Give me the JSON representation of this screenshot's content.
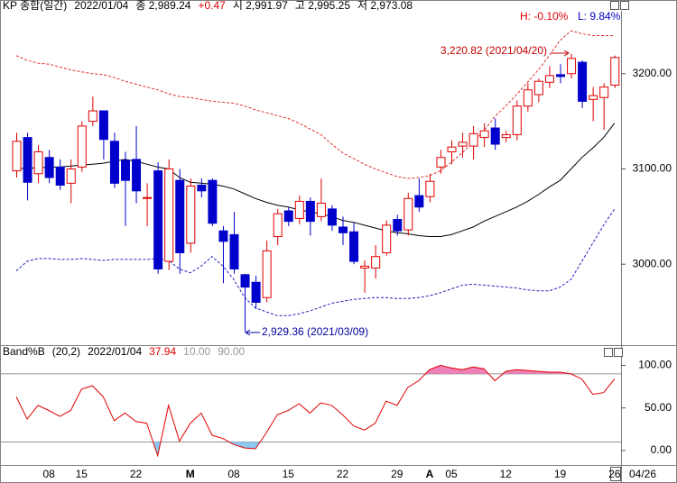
{
  "chart_data": [
    {
      "type": "candlestick",
      "header": [
        "KP 종합(일간)",
        "2022/01/04",
        "종 2,989.24",
        "+0.47",
        "시 2,991.97",
        "고 2,995.25",
        "저 2,973.08"
      ],
      "header_colors": [
        "#000000",
        "#000000",
        "#000000",
        "#e00000",
        "#000000",
        "#000000",
        "#000000"
      ],
      "range_labels": [
        "H: -0.10%",
        "L: 9.84%"
      ],
      "range_colors": [
        "#e00000",
        "#0000c0"
      ],
      "annotations": [
        {
          "text": "3,220.82 (2021/04/20)",
          "color": "#c00000"
        },
        {
          "text": "2,929.36 (2021/03/09)",
          "color": "#0000a0"
        }
      ],
      "categories": [
        null,
        null,
        null,
        "08",
        null,
        null,
        "15",
        null,
        null,
        null,
        null,
        "22",
        null,
        null,
        null,
        null,
        "M",
        null,
        null,
        null,
        "08",
        null,
        null,
        null,
        null,
        "15",
        null,
        null,
        null,
        null,
        "22",
        null,
        null,
        null,
        null,
        "29",
        null,
        null,
        "A",
        null,
        "05",
        null,
        null,
        null,
        null,
        "12",
        null,
        null,
        null,
        null,
        "19",
        null,
        null,
        null,
        null,
        "26"
      ],
      "date_label": "04/26",
      "open": [
        3098,
        3133,
        3095,
        3112,
        3102,
        3085,
        3102,
        3150,
        3161,
        3129,
        3109,
        3110,
        3069,
        3098,
        3003,
        3088,
        3022,
        3083,
        3088,
        3035,
        3031,
        2989,
        2981,
        2965,
        3029,
        3056,
        3048,
        3066,
        3050,
        3058,
        3039,
        3034,
        2996,
        2996,
        3012,
        3047,
        3036,
        3072,
        3071,
        3102,
        3118,
        3124,
        3124,
        3133,
        3143,
        3133,
        3136,
        3166,
        3178,
        3191,
        3199,
        3200,
        3212,
        3173,
        3175,
        3188
      ],
      "high": [
        3138,
        3138,
        3125,
        3120,
        3110,
        3110,
        3150,
        3176,
        3161,
        3138,
        3118,
        3145,
        3085,
        3107,
        3110,
        3100,
        3090,
        3090,
        3090,
        3040,
        3055,
        2990,
        2988,
        3025,
        3058,
        3060,
        3072,
        3070,
        3090,
        3062,
        3050,
        3044,
        3004,
        3020,
        3046,
        3052,
        3075,
        3090,
        3095,
        3120,
        3130,
        3138,
        3145,
        3148,
        3153,
        3140,
        3172,
        3190,
        3195,
        3208,
        3210,
        3220.82,
        3214,
        3186,
        3190,
        3219
      ],
      "low": [
        3091,
        3067,
        3085,
        3085,
        3078,
        3064,
        3097,
        3145,
        3110,
        3080,
        3040,
        3064,
        3040,
        2990,
        2994,
        2990,
        3012,
        3070,
        3040,
        2980,
        2990,
        2929.36,
        2953,
        2960,
        3020,
        3040,
        3042,
        3030,
        3045,
        3035,
        3020,
        3000,
        2970,
        2985,
        3009,
        3030,
        3030,
        3055,
        3065,
        3095,
        3105,
        3112,
        3110,
        3123,
        3120,
        3128,
        3130,
        3160,
        3170,
        3185,
        3190,
        3195,
        3164,
        3150,
        3141,
        3185
      ],
      "close": [
        3129,
        3086,
        3118,
        3091,
        3083,
        3100,
        3145,
        3161,
        3131,
        3085,
        3088,
        3077,
        3070,
        2995,
        3100,
        3012,
        3082,
        3077,
        3043,
        3024,
        2995,
        2976,
        2960,
        3014,
        3053,
        3045,
        3066,
        3045,
        3064,
        3041,
        3033,
        3003,
        2998,
        3008,
        3041,
        3035,
        3069,
        3060,
        3087,
        3112,
        3123,
        3128,
        3137,
        3140,
        3126,
        3136,
        3166,
        3183,
        3192,
        3198,
        3197,
        3216,
        3171,
        3177,
        3186,
        3217
      ],
      "up_color": "#e00000",
      "down_color": "#0000cc",
      "series": [
        {
          "color": "#000000",
          "style": "solid",
          "values": [
            3100,
            3101,
            3101,
            3102,
            3102,
            3103,
            3104,
            3105,
            3106,
            3108,
            3110,
            3108,
            3105,
            3102,
            3100,
            3091,
            3086,
            3085,
            3084,
            3082,
            3079,
            3074,
            3069,
            3065,
            3062,
            3060,
            3057,
            3055,
            3053,
            3050,
            3046,
            3044,
            3041,
            3038,
            3035,
            3033,
            3032,
            3030,
            3029,
            3029,
            3031,
            3035,
            3039,
            3045,
            3050,
            3055,
            3060,
            3066,
            3073,
            3081,
            3088,
            3100,
            3112,
            3122,
            3133,
            3148
          ]
        },
        {
          "color": "#e03030",
          "style": "dashed",
          "values": [
            3219,
            3214,
            3211,
            3210,
            3207,
            3204,
            3202,
            3200,
            3199,
            3196,
            3192,
            3189,
            3186,
            3183,
            3179,
            3176,
            3175,
            3173,
            3171,
            3170,
            3169,
            3166,
            3162,
            3159,
            3156,
            3153,
            3148,
            3142,
            3136,
            3126,
            3117,
            3111,
            3105,
            3100,
            3096,
            3092,
            3090,
            3091,
            3093,
            3098,
            3107,
            3117,
            3128,
            3140,
            3155,
            3166,
            3178,
            3191,
            3204,
            3219,
            3235,
            3245,
            3242,
            3240,
            3240,
            3240
          ]
        },
        {
          "color": "#2020c0",
          "style": "dashed",
          "values": [
            2993,
            3003,
            3006,
            3006,
            3005,
            3005,
            3006,
            3005,
            3004,
            3005,
            3005,
            3005,
            3005,
            3006,
            3004,
            2995,
            2991,
            2998,
            3008,
            2998,
            2984,
            2965,
            2954,
            2950,
            2946,
            2946,
            2948,
            2951,
            2955,
            2959,
            2961,
            2963,
            2964,
            2965,
            2965,
            2964,
            2964,
            2965,
            2967,
            2970,
            2974,
            2978,
            2979,
            2978,
            2977,
            2976,
            2975,
            2973,
            2972,
            2972,
            2976,
            2984,
            3003,
            3022,
            3041,
            3058
          ]
        }
      ],
      "ylim": [
        2916,
        3266
      ],
      "yticks": [
        {
          "value": 3200,
          "label": "3200.00"
        },
        {
          "value": 3100,
          "label": "3100.00"
        },
        {
          "value": 3000,
          "label": "3000.00"
        }
      ]
    },
    {
      "type": "line",
      "header": [
        "Band%B",
        "(20,2)",
        "2022/01/04",
        "37.94",
        "10.00",
        "90.00"
      ],
      "header_colors": [
        "#000000",
        "#000000",
        "#000000",
        "#e00000",
        "#999999",
        "#999999"
      ],
      "color": "#e00000",
      "values": [
        63,
        37,
        53,
        47,
        40,
        47,
        72,
        76,
        63,
        35,
        44,
        34,
        32,
        -6,
        53,
        11,
        32,
        44,
        18,
        14,
        7,
        3,
        2,
        21,
        42,
        47,
        55,
        44,
        56,
        53,
        42,
        29,
        24,
        32,
        58,
        53,
        74,
        82,
        95,
        100,
        97,
        95,
        98,
        96,
        82,
        93,
        95,
        94,
        93,
        92,
        92,
        90,
        84,
        66,
        68,
        84
      ],
      "thresholds": [
        10,
        90
      ],
      "threshold_color": "#909090",
      "above_fill": "#f080b8",
      "below_fill": "#8cc8f0",
      "ylim": [
        -17,
        110
      ],
      "yticks": [
        {
          "value": 100,
          "label": "100.00"
        },
        {
          "value": 50,
          "label": "50.00"
        },
        {
          "value": 0,
          "label": "0.00"
        }
      ]
    }
  ]
}
